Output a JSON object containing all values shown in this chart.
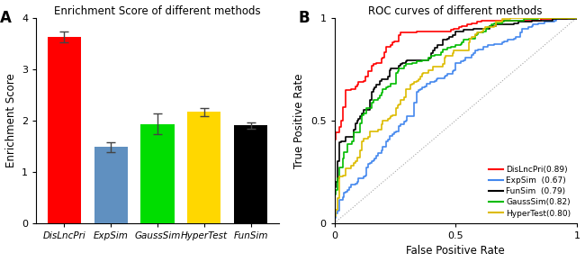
{
  "panel_A": {
    "title": "Enrichment Score of different methods",
    "ylabel": "Enrichment Score",
    "categories": [
      "DisLncPri",
      "ExpSim",
      "GaussSim",
      "HyperTest",
      "FunSim"
    ],
    "values": [
      3.63,
      1.48,
      1.93,
      2.17,
      1.9
    ],
    "errors": [
      0.1,
      0.1,
      0.2,
      0.08,
      0.07
    ],
    "colors": [
      "#FF0000",
      "#6090C0",
      "#00DD00",
      "#FFD700",
      "#000000"
    ],
    "ylim": [
      0,
      4
    ],
    "yticks": [
      0,
      1,
      2,
      3,
      4
    ]
  },
  "panel_B": {
    "title": "ROC curves of different methods",
    "xlabel": "False Positive Rate",
    "ylabel": "True Positive Rate",
    "roc_curves": [
      {
        "name": "DisLncPri",
        "auc": 0.89,
        "color": "#FF0000",
        "seed": 1
      },
      {
        "name": "ExpSim",
        "auc": 0.67,
        "color": "#4488EE",
        "seed": 2
      },
      {
        "name": "FunSim",
        "auc": 0.79,
        "color": "#000000",
        "seed": 3
      },
      {
        "name": "GaussSim",
        "auc": 0.82,
        "color": "#00BB00",
        "seed": 4
      },
      {
        "name": "HyperTest",
        "auc": 0.8,
        "color": "#DDBB00",
        "seed": 5
      }
    ],
    "legend_order": [
      {
        "label": "DisLncPri(0.89)",
        "color": "#FF0000"
      },
      {
        "label": "ExpSim  (0.67)",
        "color": "#4488EE"
      },
      {
        "label": "FunSim  (0.79)",
        "color": "#000000"
      },
      {
        "label": "GaussSim(0.82)",
        "color": "#00BB00"
      },
      {
        "label": "HyperTest(0.80)",
        "color": "#DDBB00"
      }
    ]
  }
}
